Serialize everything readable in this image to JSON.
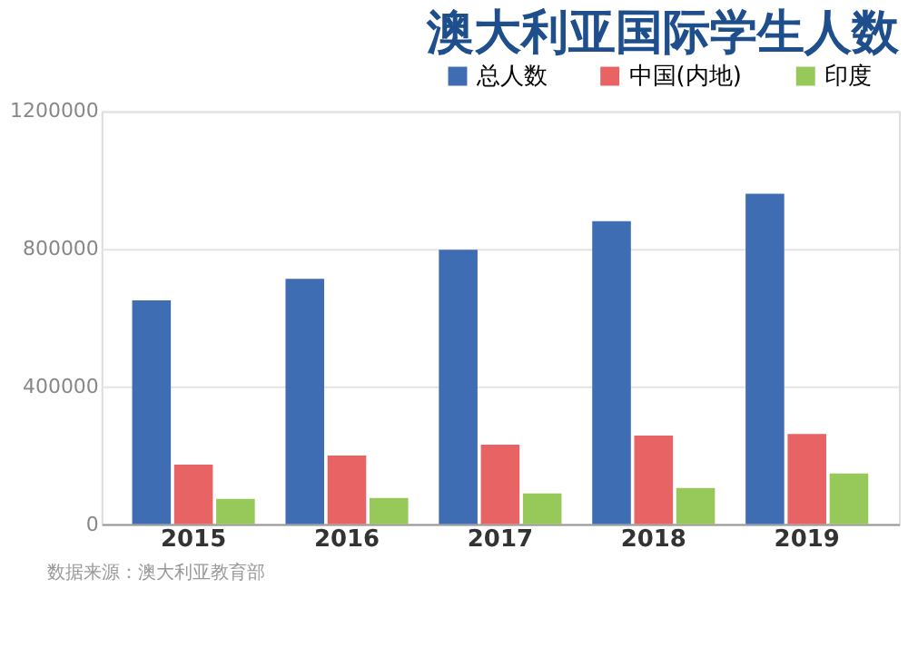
{
  "chart_data": {
    "type": "bar",
    "title": "澳大利亚国际学生人数",
    "categories": [
      "2015",
      "2016",
      "2017",
      "2018",
      "2019"
    ],
    "series": [
      {
        "name": "总人数",
        "color": "#3f6db3",
        "values": [
          650000,
          713000,
          797000,
          880000,
          960000
        ]
      },
      {
        "name": "中国(内地)",
        "color": "#e86464",
        "values": [
          173000,
          199000,
          231000,
          257000,
          262000
        ]
      },
      {
        "name": "印度",
        "color": "#96c85a",
        "values": [
          73000,
          76000,
          89000,
          105000,
          147000
        ]
      }
    ],
    "ylim": [
      0,
      1200000
    ],
    "yticks": [
      0,
      400000,
      800000,
      1200000
    ],
    "grid": "y",
    "legend": "top right",
    "annotations": [
      "数据来源：澳大利亚教育部"
    ]
  }
}
